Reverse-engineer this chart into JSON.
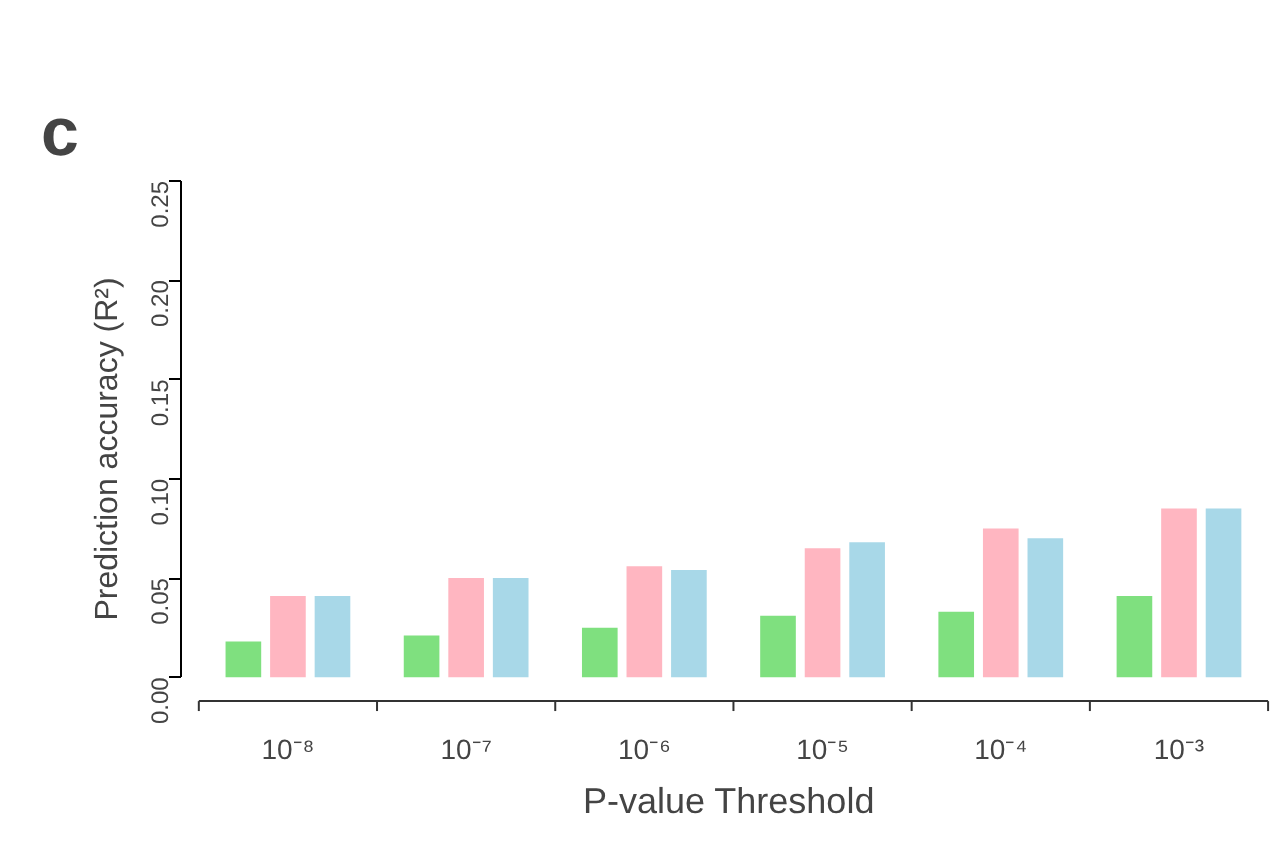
{
  "chart_data": {
    "type": "bar",
    "title": "c",
    "xlabel": "P-value Threshold",
    "ylabel": "Prediction accuracy (R²)",
    "categories": [
      "10⁻⁸",
      "10⁻⁷",
      "10⁻⁶",
      "10⁻⁵",
      "10⁻⁴",
      "10⁻³"
    ],
    "series": [
      {
        "color": "#7fe07f",
        "values": [
          0.018,
          0.021,
          0.025,
          0.031,
          0.033,
          0.041
        ]
      },
      {
        "color": "#ffb6c1",
        "values": [
          0.041,
          0.05,
          0.056,
          0.065,
          0.075,
          0.085
        ]
      },
      {
        "color": "#a8d8e8",
        "values": [
          0.041,
          0.05,
          0.054,
          0.068,
          0.07,
          0.085
        ]
      }
    ],
    "ylim": [
      0,
      0.25
    ],
    "yticks": [
      {
        "value": 0,
        "label": "0.00"
      },
      {
        "value": 0.05,
        "label": "0.05"
      },
      {
        "value": 0.1,
        "label": "0.10"
      },
      {
        "value": 0.15,
        "label": "0.15"
      },
      {
        "value": 0.2,
        "label": "0.20"
      },
      {
        "value": 0.25,
        "label": "0.25"
      }
    ],
    "grid": false
  }
}
